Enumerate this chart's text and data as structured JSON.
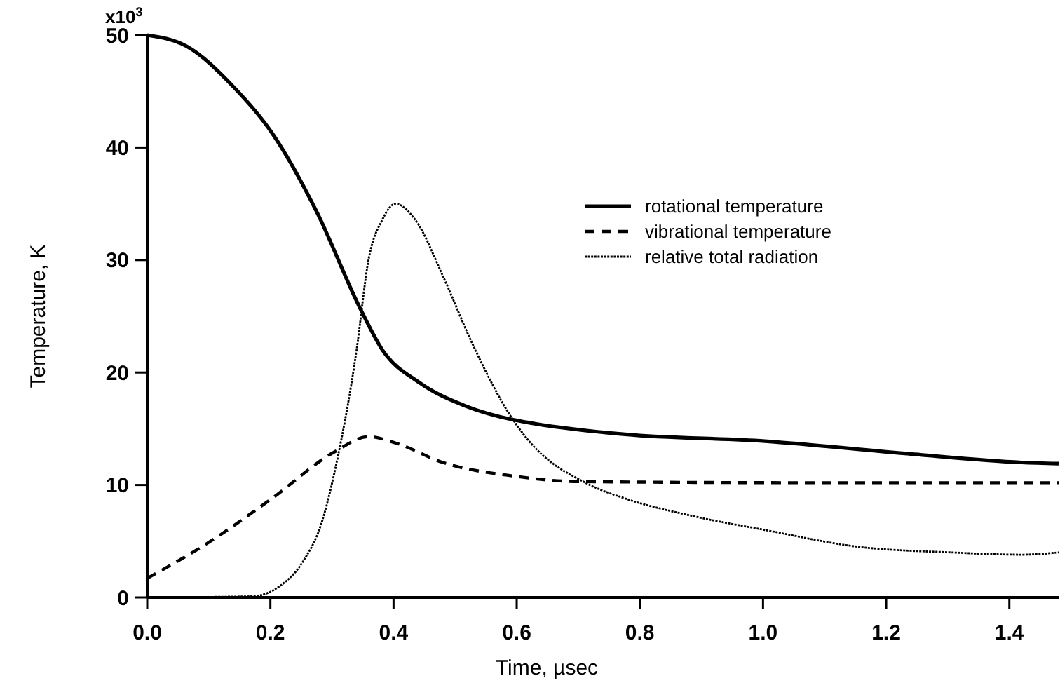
{
  "chart_data": {
    "type": "line",
    "xlabel": "Time, µsec",
    "ylabel": "Temperature, K",
    "xlim": [
      0,
      1.48
    ],
    "xticks": [
      {
        "value": 0,
        "label": "0.0"
      },
      0.2,
      0.4,
      0.6,
      0.8,
      {
        "value": 1,
        "label": "1.0"
      },
      1.2,
      1.4
    ],
    "ylim": [
      0,
      50
    ],
    "yticks": [
      0,
      10,
      20,
      30,
      40,
      50
    ],
    "annotations": [
      "x10$^{3}$"
    ],
    "grid": false,
    "legend": "right",
    "marker": "none",
    "series": [
      {
        "name": "rotational temperature",
        "color": "#000000",
        "line_style": "solid",
        "x": [
          0,
          0.064,
          0.14,
          0.2,
          0.276,
          0.344,
          0.382,
          0.442,
          0.518,
          0.594,
          0.624,
          0.776,
          1.003,
          1.23,
          1.42,
          1.48
        ],
        "values": [
          50,
          49,
          45.4,
          41.5,
          34.2,
          25.9,
          22,
          19.1,
          17,
          15.8,
          15.5,
          14.5,
          13.9,
          12.8,
          12,
          11.9
        ]
      },
      {
        "name": "vibrational temperature",
        "color": "#000000",
        "line_style": "dashed",
        "x": [
          0,
          0.1,
          0.2,
          0.306,
          0.359,
          0.405,
          0.48,
          0.594,
          0.7,
          1.1,
          1.48
        ],
        "values": [
          1.7,
          4.9,
          8.7,
          13,
          14.3,
          13.7,
          12,
          10.8,
          10.3,
          10.2,
          10.2
        ]
      },
      {
        "name": "relative total radiation",
        "color": "#000000",
        "line_style": "dotted",
        "x": [
          0,
          0.17,
          0.215,
          0.253,
          0.283,
          0.306,
          0.34,
          0.359,
          0.382,
          0.403,
          0.435,
          0.48,
          0.526,
          0.594,
          0.617,
          0.715,
          0.776,
          0.889,
          1.003,
          1.155,
          1.306,
          1.42,
          1.48
        ],
        "values": [
          0,
          0.1,
          1,
          3.2,
          6.6,
          11.6,
          22,
          29.9,
          33.6,
          35,
          33.6,
          28.6,
          22.8,
          15.8,
          14.1,
          10.1,
          8.8,
          7.2,
          6,
          4.5,
          4,
          3.8,
          4
        ]
      }
    ]
  }
}
